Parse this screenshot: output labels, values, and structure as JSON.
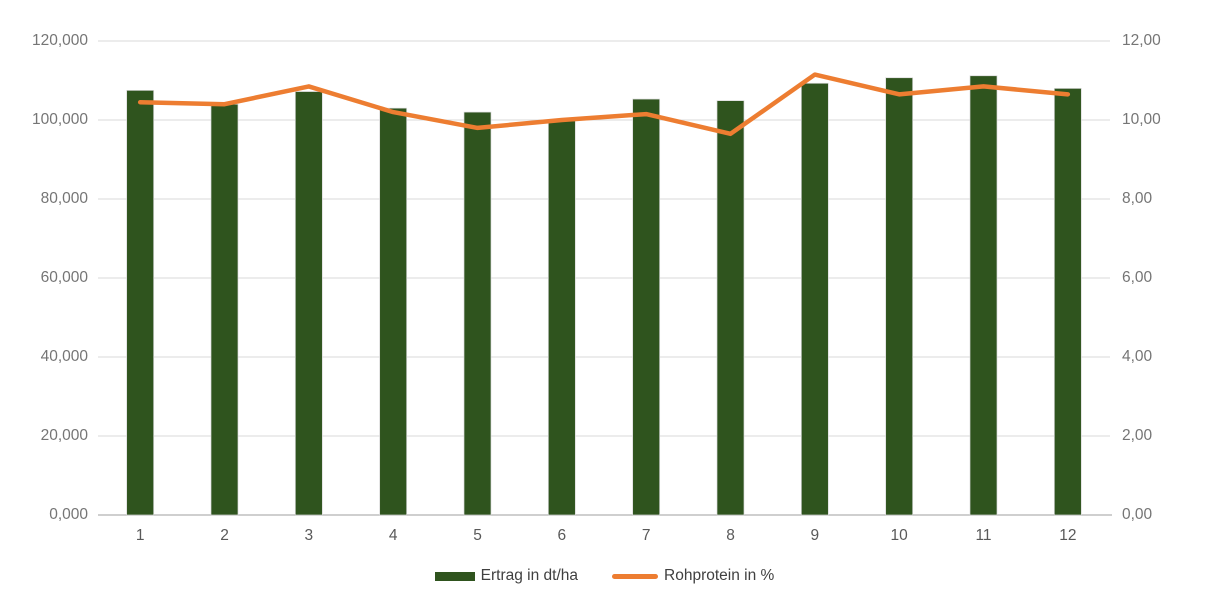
{
  "chart_data": {
    "type": "combo",
    "title": "",
    "categories": [
      "1",
      "2",
      "3",
      "4",
      "5",
      "6",
      "7",
      "8",
      "9",
      "10",
      "11",
      "12"
    ],
    "series": [
      {
        "name": "Ertrag in dt/ha",
        "type": "bar",
        "axis": "left",
        "values": [
          107.5,
          104.0,
          107.2,
          103.0,
          102.0,
          99.8,
          105.3,
          104.9,
          109.3,
          110.7,
          111.2,
          108.0
        ]
      },
      {
        "name": "Rohprotein in %",
        "type": "line",
        "axis": "right",
        "values": [
          10.45,
          10.4,
          10.85,
          10.2,
          9.8,
          10.0,
          10.15,
          9.65,
          11.15,
          10.65,
          10.85,
          10.65
        ]
      }
    ],
    "axes": {
      "left": {
        "ticks": [
          "120,000",
          "100,000",
          "80,000",
          "60,000",
          "40,000",
          "20,000",
          "0,000"
        ],
        "min": 0,
        "max": 120
      },
      "right": {
        "ticks": [
          "12,00",
          "10,00",
          "8,00",
          "6,00",
          "4,00",
          "2,00",
          "0,00"
        ],
        "min": 0,
        "max": 12
      }
    },
    "grid": "horizontal",
    "legend_position": "bottom"
  },
  "colors": {
    "bar": "#2f541e",
    "line": "#ed7d31",
    "gridline": "#d9d9d9",
    "baseline": "#bfbfbf",
    "tick_text": "#757575",
    "x_label_text": "#595959",
    "legend_text": "#404040"
  }
}
